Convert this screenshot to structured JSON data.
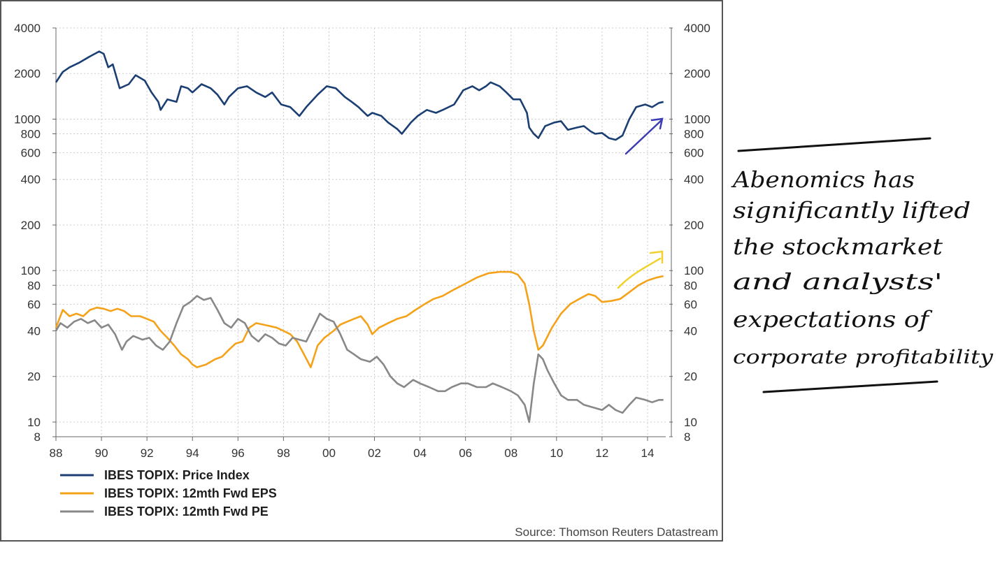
{
  "chart_data": {
    "type": "line",
    "y_scale": "log",
    "ylim": [
      8,
      4000
    ],
    "xlim": [
      1988,
      2014.8
    ],
    "grid": true,
    "legend_position": "bottom-left",
    "y_ticks": [
      4000,
      2000,
      1000,
      800,
      600,
      400,
      200,
      100,
      80,
      60,
      40,
      20,
      10,
      8
    ],
    "y_tick_labels": [
      "4000",
      "2000",
      "1000",
      "800",
      "600",
      "400",
      "200",
      "100",
      "80",
      "60",
      "40",
      "20",
      "10",
      "8"
    ],
    "x_ticks": [
      1988,
      1990,
      1992,
      1994,
      1996,
      1998,
      2000,
      2002,
      2004,
      2006,
      2008,
      2010,
      2012,
      2014
    ],
    "x_tick_labels": [
      "88",
      "90",
      "92",
      "94",
      "96",
      "98",
      "00",
      "02",
      "04",
      "06",
      "08",
      "10",
      "12",
      "14"
    ],
    "source": "Source: Thomson Reuters Datastream",
    "series": [
      {
        "name": "IBES TOPIX: Price Index",
        "color": "#1b3f73",
        "points": [
          [
            1988.0,
            1750
          ],
          [
            1988.3,
            2050
          ],
          [
            1988.6,
            2200
          ],
          [
            1989.0,
            2350
          ],
          [
            1989.5,
            2600
          ],
          [
            1989.9,
            2800
          ],
          [
            1990.1,
            2700
          ],
          [
            1990.3,
            2200
          ],
          [
            1990.5,
            2300
          ],
          [
            1990.8,
            1600
          ],
          [
            1991.2,
            1700
          ],
          [
            1991.5,
            1950
          ],
          [
            1991.9,
            1800
          ],
          [
            1992.2,
            1500
          ],
          [
            1992.5,
            1300
          ],
          [
            1992.6,
            1150
          ],
          [
            1992.9,
            1350
          ],
          [
            1993.3,
            1300
          ],
          [
            1993.5,
            1650
          ],
          [
            1993.8,
            1600
          ],
          [
            1994.0,
            1500
          ],
          [
            1994.4,
            1700
          ],
          [
            1994.8,
            1600
          ],
          [
            1995.1,
            1450
          ],
          [
            1995.4,
            1250
          ],
          [
            1995.6,
            1400
          ],
          [
            1996.0,
            1600
          ],
          [
            1996.4,
            1650
          ],
          [
            1996.8,
            1500
          ],
          [
            1997.2,
            1400
          ],
          [
            1997.5,
            1500
          ],
          [
            1997.9,
            1250
          ],
          [
            1998.3,
            1200
          ],
          [
            1998.7,
            1050
          ],
          [
            1999.0,
            1200
          ],
          [
            1999.5,
            1450
          ],
          [
            1999.9,
            1650
          ],
          [
            2000.3,
            1600
          ],
          [
            2000.7,
            1400
          ],
          [
            2001.0,
            1300
          ],
          [
            2001.3,
            1200
          ],
          [
            2001.7,
            1050
          ],
          [
            2001.9,
            1100
          ],
          [
            2002.3,
            1050
          ],
          [
            2002.6,
            950
          ],
          [
            2003.0,
            860
          ],
          [
            2003.2,
            800
          ],
          [
            2003.6,
            950
          ],
          [
            2003.9,
            1050
          ],
          [
            2004.3,
            1150
          ],
          [
            2004.7,
            1100
          ],
          [
            2005.0,
            1150
          ],
          [
            2005.5,
            1250
          ],
          [
            2005.9,
            1550
          ],
          [
            2006.3,
            1650
          ],
          [
            2006.6,
            1550
          ],
          [
            2006.9,
            1650
          ],
          [
            2007.1,
            1750
          ],
          [
            2007.5,
            1650
          ],
          [
            2007.8,
            1500
          ],
          [
            2008.1,
            1350
          ],
          [
            2008.4,
            1350
          ],
          [
            2008.7,
            1100
          ],
          [
            2008.8,
            880
          ],
          [
            2009.0,
            800
          ],
          [
            2009.2,
            750
          ],
          [
            2009.5,
            900
          ],
          [
            2009.9,
            950
          ],
          [
            2010.2,
            970
          ],
          [
            2010.5,
            850
          ],
          [
            2010.9,
            880
          ],
          [
            2011.2,
            900
          ],
          [
            2011.5,
            830
          ],
          [
            2011.7,
            800
          ],
          [
            2012.0,
            810
          ],
          [
            2012.3,
            750
          ],
          [
            2012.6,
            730
          ],
          [
            2012.9,
            780
          ],
          [
            2013.2,
            1000
          ],
          [
            2013.5,
            1200
          ],
          [
            2013.9,
            1250
          ],
          [
            2014.2,
            1200
          ],
          [
            2014.5,
            1280
          ],
          [
            2014.7,
            1300
          ]
        ]
      },
      {
        "name": "IBES TOPIX: 12mth Fwd EPS",
        "color": "#f5a21b",
        "points": [
          [
            1988.0,
            42
          ],
          [
            1988.3,
            55
          ],
          [
            1988.6,
            50
          ],
          [
            1988.9,
            52
          ],
          [
            1989.2,
            50
          ],
          [
            1989.5,
            55
          ],
          [
            1989.8,
            57
          ],
          [
            1990.1,
            56
          ],
          [
            1990.4,
            54
          ],
          [
            1990.7,
            56
          ],
          [
            1991.0,
            54
          ],
          [
            1991.3,
            50
          ],
          [
            1991.7,
            50
          ],
          [
            1992.0,
            48
          ],
          [
            1992.3,
            46
          ],
          [
            1992.6,
            40
          ],
          [
            1992.9,
            36
          ],
          [
            1993.2,
            32
          ],
          [
            1993.5,
            28
          ],
          [
            1993.8,
            26
          ],
          [
            1994.0,
            24
          ],
          [
            1994.2,
            23
          ],
          [
            1994.6,
            24
          ],
          [
            1995.0,
            26
          ],
          [
            1995.3,
            27
          ],
          [
            1995.6,
            30
          ],
          [
            1995.9,
            33
          ],
          [
            1996.2,
            34
          ],
          [
            1996.5,
            42
          ],
          [
            1996.8,
            45
          ],
          [
            1997.1,
            44
          ],
          [
            1997.4,
            43
          ],
          [
            1997.7,
            42
          ],
          [
            1998.0,
            40
          ],
          [
            1998.3,
            38
          ],
          [
            1998.6,
            34
          ],
          [
            1998.9,
            28
          ],
          [
            1999.2,
            23
          ],
          [
            1999.5,
            32
          ],
          [
            1999.8,
            36
          ],
          [
            2000.2,
            40
          ],
          [
            2000.5,
            44
          ],
          [
            2000.8,
            46
          ],
          [
            2001.1,
            48
          ],
          [
            2001.4,
            50
          ],
          [
            2001.7,
            44
          ],
          [
            2001.9,
            38
          ],
          [
            2002.2,
            42
          ],
          [
            2002.6,
            45
          ],
          [
            2003.0,
            48
          ],
          [
            2003.4,
            50
          ],
          [
            2003.8,
            55
          ],
          [
            2004.2,
            60
          ],
          [
            2004.6,
            65
          ],
          [
            2005.0,
            68
          ],
          [
            2005.5,
            75
          ],
          [
            2006.0,
            82
          ],
          [
            2006.5,
            90
          ],
          [
            2007.0,
            96
          ],
          [
            2007.5,
            98
          ],
          [
            2008.0,
            98
          ],
          [
            2008.3,
            94
          ],
          [
            2008.6,
            82
          ],
          [
            2008.8,
            60
          ],
          [
            2009.0,
            40
          ],
          [
            2009.2,
            30
          ],
          [
            2009.4,
            32
          ],
          [
            2009.8,
            42
          ],
          [
            2010.2,
            52
          ],
          [
            2010.6,
            60
          ],
          [
            2011.0,
            65
          ],
          [
            2011.4,
            70
          ],
          [
            2011.7,
            68
          ],
          [
            2012.0,
            62
          ],
          [
            2012.4,
            63
          ],
          [
            2012.8,
            65
          ],
          [
            2013.2,
            72
          ],
          [
            2013.6,
            80
          ],
          [
            2014.0,
            86
          ],
          [
            2014.4,
            90
          ],
          [
            2014.7,
            92
          ]
        ]
      },
      {
        "name": "IBES TOPIX: 12mth Fwd PE",
        "color": "#888888",
        "points": [
          [
            1988.0,
            40
          ],
          [
            1988.2,
            45
          ],
          [
            1988.5,
            42
          ],
          [
            1988.8,
            46
          ],
          [
            1989.1,
            48
          ],
          [
            1989.4,
            45
          ],
          [
            1989.7,
            47
          ],
          [
            1990.0,
            42
          ],
          [
            1990.3,
            44
          ],
          [
            1990.6,
            38
          ],
          [
            1990.9,
            30
          ],
          [
            1991.1,
            34
          ],
          [
            1991.4,
            37
          ],
          [
            1991.8,
            35
          ],
          [
            1992.1,
            36
          ],
          [
            1992.4,
            32
          ],
          [
            1992.7,
            30
          ],
          [
            1993.0,
            34
          ],
          [
            1993.3,
            45
          ],
          [
            1993.6,
            58
          ],
          [
            1993.9,
            62
          ],
          [
            1994.2,
            68
          ],
          [
            1994.5,
            64
          ],
          [
            1994.8,
            66
          ],
          [
            1995.1,
            55
          ],
          [
            1995.4,
            45
          ],
          [
            1995.7,
            42
          ],
          [
            1996.0,
            48
          ],
          [
            1996.3,
            45
          ],
          [
            1996.6,
            37
          ],
          [
            1996.9,
            34
          ],
          [
            1997.2,
            38
          ],
          [
            1997.5,
            36
          ],
          [
            1997.8,
            33
          ],
          [
            1998.1,
            32
          ],
          [
            1998.4,
            36
          ],
          [
            1998.7,
            35
          ],
          [
            1999.0,
            34
          ],
          [
            1999.3,
            42
          ],
          [
            1999.6,
            52
          ],
          [
            1999.9,
            48
          ],
          [
            2000.2,
            46
          ],
          [
            2000.5,
            38
          ],
          [
            2000.8,
            30
          ],
          [
            2001.1,
            28
          ],
          [
            2001.4,
            26
          ],
          [
            2001.8,
            25
          ],
          [
            2002.1,
            27
          ],
          [
            2002.4,
            24
          ],
          [
            2002.7,
            20
          ],
          [
            2003.0,
            18
          ],
          [
            2003.3,
            17
          ],
          [
            2003.7,
            19
          ],
          [
            2004.0,
            18
          ],
          [
            2004.4,
            17
          ],
          [
            2004.8,
            16
          ],
          [
            2005.1,
            16
          ],
          [
            2005.4,
            17
          ],
          [
            2005.8,
            18
          ],
          [
            2006.1,
            18
          ],
          [
            2006.5,
            17
          ],
          [
            2006.9,
            17
          ],
          [
            2007.2,
            18
          ],
          [
            2007.6,
            17
          ],
          [
            2008.0,
            16
          ],
          [
            2008.3,
            15
          ],
          [
            2008.6,
            13
          ],
          [
            2008.8,
            10
          ],
          [
            2009.0,
            18
          ],
          [
            2009.2,
            28
          ],
          [
            2009.4,
            26
          ],
          [
            2009.6,
            22
          ],
          [
            2009.9,
            18
          ],
          [
            2010.2,
            15
          ],
          [
            2010.5,
            14
          ],
          [
            2010.9,
            14
          ],
          [
            2011.2,
            13
          ],
          [
            2011.6,
            12.5
          ],
          [
            2012.0,
            12
          ],
          [
            2012.3,
            13
          ],
          [
            2012.6,
            12
          ],
          [
            2012.9,
            11.5
          ],
          [
            2013.2,
            13
          ],
          [
            2013.5,
            14.5
          ],
          [
            2013.9,
            14
          ],
          [
            2014.2,
            13.5
          ],
          [
            2014.5,
            14
          ],
          [
            2014.7,
            14
          ]
        ]
      }
    ]
  },
  "annotation": {
    "handwritten_note_lines": [
      "Abenomics has",
      "significantly lifted",
      "the stockmarket",
      "and analysts'",
      "expectations of",
      "corporate profitability"
    ],
    "blue_arrow_color": "#3c3cb4",
    "yellow_arrow_color": "#f0d22a",
    "ink_color": "#111111"
  }
}
